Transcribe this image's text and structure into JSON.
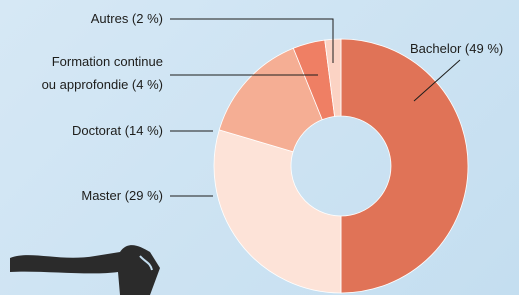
{
  "chart_data": {
    "type": "pie",
    "categories": [
      "Bachelor (49 %)",
      "Master (29 %)",
      "Doctorat (14 %)",
      "Formation continue\nou approfondie (4 %)",
      "Autres (2 %)"
    ],
    "values": [
      49,
      29,
      14,
      4,
      2
    ],
    "colors": [
      "#e07357",
      "#fde3d8",
      "#f5ae94",
      "#ef7f64",
      "#fbd3c4"
    ]
  }
}
